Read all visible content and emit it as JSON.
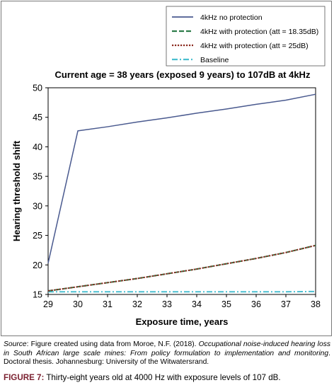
{
  "chart_data": {
    "type": "line",
    "title": "Current age = 38 years (exposed 9 years) to 107dB at 4kHz",
    "xlabel": "Exposure time, years",
    "ylabel": "Hearing threshold shift",
    "xlim": [
      29,
      38
    ],
    "ylim": [
      15,
      50
    ],
    "x_ticks": [
      29,
      30,
      31,
      32,
      33,
      34,
      35,
      36,
      37,
      38
    ],
    "y_ticks": [
      15,
      20,
      25,
      30,
      35,
      40,
      45,
      50
    ],
    "grid": false,
    "legend_position": "top-right",
    "series": [
      {
        "name": "4kHz no protection",
        "color": "#4a5a8f",
        "style": "solid",
        "x": [
          29,
          30,
          31,
          32,
          33,
          34,
          35,
          36,
          37,
          38
        ],
        "y": [
          20.3,
          42.7,
          43.4,
          44.2,
          44.9,
          45.7,
          46.4,
          47.2,
          47.9,
          48.9
        ]
      },
      {
        "name": "4kHz with protection (att = 18.35dB)",
        "color": "#2e7d4a",
        "style": "dashed",
        "x": [
          29,
          30,
          31,
          32,
          33,
          34,
          35,
          36,
          37,
          38
        ],
        "y": [
          15.6,
          16.3,
          17.0,
          17.7,
          18.5,
          19.3,
          20.2,
          21.1,
          22.1,
          23.3
        ]
      },
      {
        "name": "4kHz with protection (att = 25dB)",
        "color": "#8b2a1f",
        "style": "dotted",
        "x": [
          29,
          30,
          31,
          32,
          33,
          34,
          35,
          36,
          37,
          38
        ],
        "y": [
          15.6,
          16.3,
          17.0,
          17.7,
          18.5,
          19.3,
          20.2,
          21.1,
          22.1,
          23.3
        ]
      },
      {
        "name": "Baseline",
        "color": "#4bbfd0",
        "style": "dashdot",
        "x": [
          29,
          30,
          31,
          32,
          33,
          34,
          35,
          36,
          37,
          38
        ],
        "y": [
          15.45,
          15.45,
          15.45,
          15.45,
          15.45,
          15.45,
          15.45,
          15.45,
          15.45,
          15.5
        ]
      }
    ]
  },
  "caption": {
    "source_label": "Source",
    "source_text_1": ": Figure created using data from Moroe, N.F. (2018). ",
    "source_italic": "Occupational noise-induced hearing loss in South African large scale mines: From policy formulation to implementation and monitoring",
    "source_text_2": ". Doctoral thesis. Johannesburg: University of the Witwatersrand.",
    "figure_label": "FIGURE 7:",
    "figure_text": " Thirty-eight years old at 4000 Hz with exposure levels of 107 dB."
  }
}
